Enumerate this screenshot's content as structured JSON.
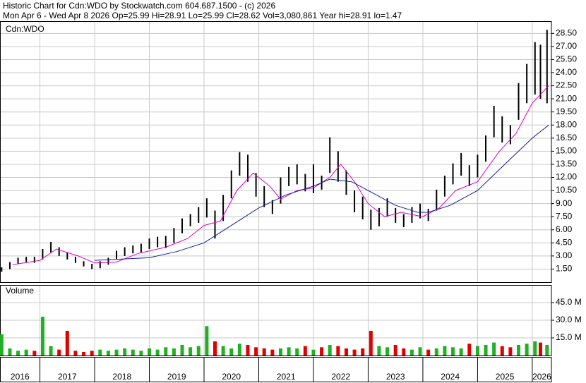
{
  "chart_data": [
    {
      "type": "ohlc",
      "title": "Historic Chart for Cdn:WDO by Stockwatch.com 604.687.1500 - (c) 2026",
      "subtitle": "Mon Apr  6 - Wed Apr  8 2026  Op=25.99  Hi=28.91  Lo=25.99  Cl=28.62  Vol=3,080,861  Year hi=28.91  lo=1.47",
      "label": "Cdn:WDO",
      "color": "#000000",
      "x": [
        2016.3,
        2016.45,
        2016.6,
        2016.75,
        2016.9,
        2017.05,
        2017.2,
        2017.35,
        2017.5,
        2017.65,
        2017.8,
        2017.95,
        2018.1,
        2018.25,
        2018.4,
        2018.55,
        2018.7,
        2018.85,
        2019.0,
        2019.15,
        2019.3,
        2019.45,
        2019.6,
        2019.75,
        2019.9,
        2020.05,
        2020.2,
        2020.35,
        2020.5,
        2020.65,
        2020.8,
        2020.95,
        2021.1,
        2021.25,
        2021.4,
        2021.55,
        2021.7,
        2021.85,
        2022.0,
        2022.15,
        2022.3,
        2022.45,
        2022.6,
        2022.75,
        2022.9,
        2023.05,
        2023.2,
        2023.35,
        2023.5,
        2023.65,
        2023.8,
        2023.95,
        2024.1,
        2024.25,
        2024.4,
        2024.55,
        2024.7,
        2024.85,
        2025.0,
        2025.15,
        2025.3,
        2025.45,
        2025.6,
        2025.75,
        2025.9,
        2026.05,
        2026.15,
        2026.27
      ],
      "high": [
        1.7,
        2.3,
        2.8,
        2.9,
        2.9,
        3.8,
        4.6,
        4.0,
        3.4,
        2.9,
        2.4,
        2.1,
        2.4,
        2.8,
        3.6,
        4.0,
        4.2,
        4.4,
        5.0,
        5.2,
        5.3,
        6.2,
        7.3,
        7.8,
        8.6,
        9.6,
        8.2,
        10.0,
        12.8,
        14.9,
        14.6,
        12.5,
        11.0,
        9.4,
        12.0,
        13.2,
        13.5,
        12.4,
        13.5,
        12.2,
        16.6,
        15.0,
        12.8,
        10.5,
        9.8,
        8.3,
        8.5,
        9.6,
        8.5,
        7.8,
        8.6,
        9.0,
        8.4,
        10.6,
        12.2,
        13.6,
        14.8,
        13.4,
        14.6,
        16.8,
        20.2,
        19.0,
        18.0,
        22.8,
        25.0,
        27.5,
        27.2,
        28.91
      ],
      "low": [
        1.2,
        1.5,
        2.1,
        2.3,
        2.2,
        2.6,
        3.4,
        3.0,
        2.6,
        2.2,
        1.8,
        1.5,
        1.6,
        2.0,
        2.6,
        3.0,
        3.3,
        3.4,
        3.8,
        4.0,
        3.9,
        4.5,
        5.6,
        6.4,
        6.8,
        7.4,
        5.0,
        7.0,
        9.6,
        12.2,
        11.5,
        9.8,
        8.6,
        7.8,
        9.0,
        11.0,
        11.2,
        10.4,
        10.2,
        10.6,
        12.5,
        11.5,
        10.0,
        8.0,
        7.2,
        6.0,
        6.4,
        7.5,
        6.8,
        6.3,
        6.8,
        7.3,
        7.0,
        8.2,
        9.8,
        11.2,
        12.2,
        11.0,
        12.0,
        13.8,
        16.6,
        16.0,
        15.8,
        18.6,
        20.5,
        21.5,
        21.0,
        20.5
      ],
      "averages": [
        {
          "color": "#e000c0",
          "x": [
            2016.5,
            2017.0,
            2017.3,
            2017.7,
            2018.0,
            2018.4,
            2018.8,
            2019.3,
            2019.7,
            2020.0,
            2020.3,
            2020.6,
            2020.9,
            2021.2,
            2021.4,
            2021.7,
            2022.0,
            2022.3,
            2022.5,
            2022.75,
            2023.0,
            2023.3,
            2023.6,
            2024.0,
            2024.3,
            2024.6,
            2025.0,
            2025.4,
            2025.7,
            2026.0,
            2026.3
          ],
          "values": [
            2.0,
            2.5,
            3.8,
            3.0,
            2.2,
            2.3,
            3.3,
            4.0,
            5.0,
            6.5,
            7.0,
            10.5,
            12.5,
            11.0,
            9.5,
            10.5,
            10.8,
            12.0,
            13.5,
            11.5,
            9.0,
            7.5,
            8.0,
            7.5,
            8.5,
            10.5,
            11.5,
            15.0,
            17.0,
            20.5,
            22.5
          ]
        },
        {
          "color": "#1020a0",
          "x": [
            2018.0,
            2019.0,
            2019.5,
            2020.0,
            2020.5,
            2021.0,
            2021.5,
            2022.0,
            2022.3,
            2022.7,
            2023.0,
            2023.5,
            2023.9,
            2024.1,
            2024.5,
            2025.0,
            2025.5,
            2026.0,
            2026.3
          ],
          "values": [
            2.5,
            2.8,
            3.5,
            4.5,
            6.5,
            8.5,
            10.0,
            11.0,
            11.8,
            11.5,
            10.5,
            8.8,
            8.0,
            8.0,
            8.8,
            10.5,
            13.5,
            16.5,
            18.0
          ]
        }
      ],
      "xlim": [
        2016.27,
        2026.35
      ],
      "xticks": [
        2016,
        2017,
        2018,
        2019,
        2020,
        2021,
        2022,
        2023,
        2024,
        2025,
        2026
      ],
      "ylim": [
        0,
        29.9
      ],
      "yticks": [
        {
          "value": 1.5,
          "label": "1.50"
        },
        {
          "value": 3,
          "label": "3.00"
        },
        {
          "value": 4.5,
          "label": "4.50"
        },
        {
          "value": 6,
          "label": "6.00"
        },
        {
          "value": 7.5,
          "label": "7.50"
        },
        {
          "value": 9,
          "label": "9.00"
        },
        {
          "value": 10.5,
          "label": "10.50"
        },
        {
          "value": 12,
          "label": "12.00"
        },
        {
          "value": 13.5,
          "label": "13.50"
        },
        {
          "value": 15,
          "label": "15.00"
        },
        {
          "value": 16.5,
          "label": "16.50"
        },
        {
          "value": 18,
          "label": "18.00"
        },
        {
          "value": 19.5,
          "label": "19.50"
        },
        {
          "value": 21,
          "label": "21.00"
        },
        {
          "value": 22.5,
          "label": "22.50"
        },
        {
          "value": 24,
          "label": "24.00"
        },
        {
          "value": 25.5,
          "label": "25.50"
        },
        {
          "value": 27,
          "label": "27.00"
        },
        {
          "value": 28.5,
          "label": "28.50"
        }
      ],
      "grid": true
    },
    {
      "type": "volume",
      "title": "Volume",
      "up_color": "#20b020",
      "down_color": "#e00000",
      "values": [
        18,
        6,
        4,
        5,
        4,
        33,
        8,
        5,
        21,
        4,
        3,
        4,
        5,
        4,
        5,
        6,
        5,
        4,
        6,
        5,
        7,
        6,
        9,
        7,
        8,
        25,
        12,
        8,
        6,
        10,
        9,
        7,
        6,
        5,
        6,
        7,
        6,
        8,
        5,
        7,
        9,
        8,
        6,
        5,
        6,
        21,
        8,
        7,
        9,
        6,
        5,
        7,
        5,
        6,
        8,
        7,
        6,
        10,
        8,
        9,
        11,
        8,
        7,
        9,
        10,
        12,
        11,
        9
      ],
      "ylim": [
        0,
        60
      ],
      "yticks": [
        {
          "value": 15,
          "label": "15.0 M"
        },
        {
          "value": 30,
          "label": "30.0 M"
        },
        {
          "value": 45,
          "label": "45.0 M"
        }
      ],
      "grid": true
    }
  ]
}
